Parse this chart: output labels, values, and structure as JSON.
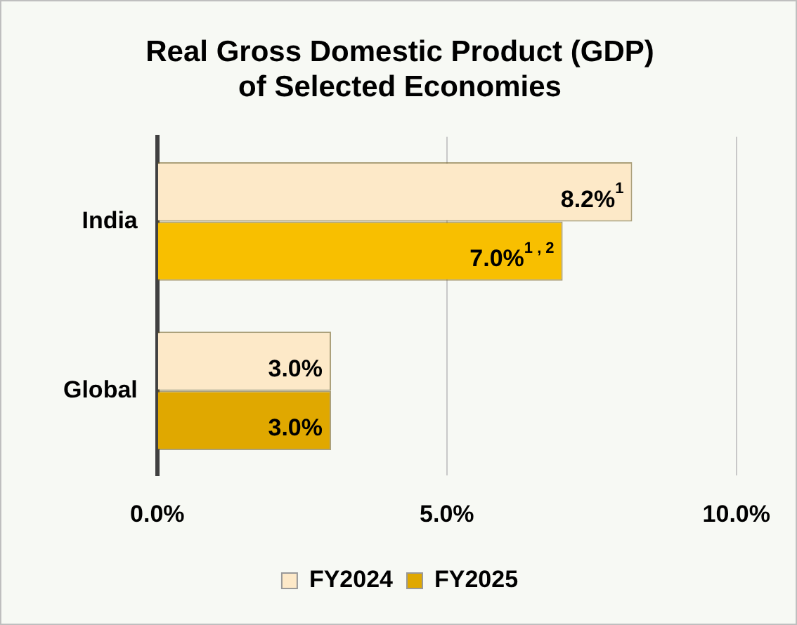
{
  "chart_data": {
    "type": "bar",
    "orientation": "horizontal",
    "title": "Real Gross Domestic Product (GDP)\nof Selected Economies",
    "categories": [
      "India",
      "Global"
    ],
    "series": [
      {
        "name": "FY2024",
        "color": "#fde9c8",
        "values": [
          8.2,
          3.0
        ],
        "value_labels": [
          "8.2%$^{1}$",
          "3.0%"
        ]
      },
      {
        "name": "FY2025",
        "color": "#e0a800",
        "colors": [
          "#f8bf00",
          "#e0a800"
        ],
        "values": [
          7.0,
          3.0
        ],
        "value_labels": [
          "7.0%$^{1 , 2}$",
          "3.0%"
        ]
      }
    ],
    "xlim": [
      0,
      10
    ],
    "xticks": [
      {
        "value": 0,
        "label": "0.0%"
      },
      {
        "value": 5,
        "label": "5.0%"
      },
      {
        "value": 10,
        "label": "10.0%"
      }
    ],
    "grid": "x",
    "legend": "bottom"
  }
}
